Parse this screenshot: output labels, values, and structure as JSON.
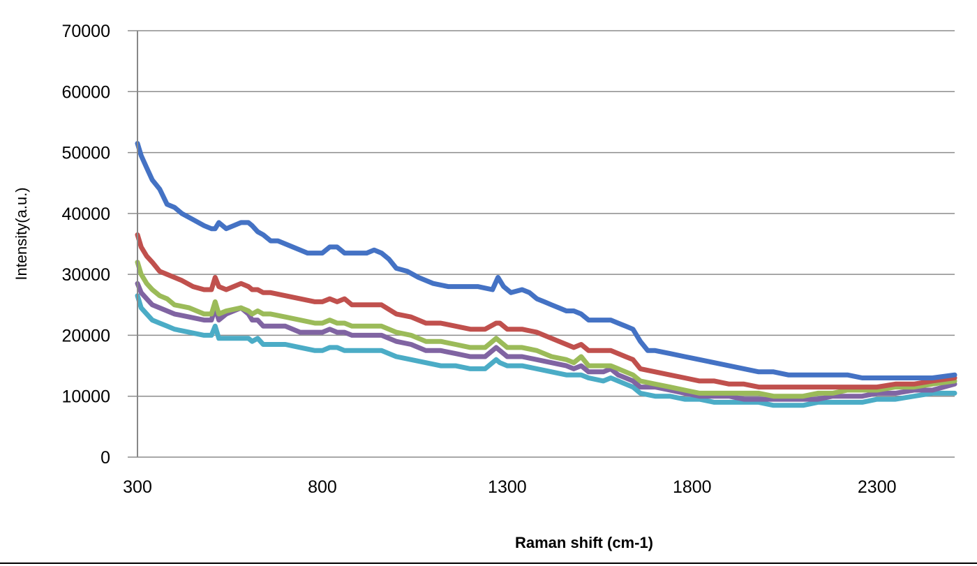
{
  "chart_data": {
    "type": "line",
    "title": "",
    "xlabel": "Raman shift (cm-1)",
    "ylabel": "Intensity(a.u.)",
    "xlim": [
      300,
      2510
    ],
    "ylim": [
      0,
      70000
    ],
    "xticks": [
      300,
      800,
      1300,
      1800,
      2300
    ],
    "yticks": [
      0,
      10000,
      20000,
      30000,
      40000,
      50000,
      60000,
      70000
    ],
    "grid": true,
    "legend": "none",
    "series": [
      {
        "color": "#4472C4",
        "x": [
          300,
          310,
          325,
          340,
          360,
          380,
          400,
          420,
          450,
          480,
          500,
          510,
          520,
          540,
          560,
          580,
          600,
          610,
          625,
          640,
          660,
          680,
          700,
          720,
          740,
          760,
          780,
          800,
          820,
          840,
          860,
          880,
          900,
          920,
          940,
          960,
          980,
          1000,
          1030,
          1060,
          1100,
          1140,
          1180,
          1220,
          1260,
          1275,
          1290,
          1310,
          1340,
          1360,
          1380,
          1400,
          1420,
          1440,
          1460,
          1480,
          1500,
          1520,
          1540,
          1560,
          1580,
          1600,
          1620,
          1640,
          1660,
          1680,
          1700,
          1740,
          1780,
          1820,
          1860,
          1900,
          1940,
          1980,
          2020,
          2060,
          2100,
          2140,
          2180,
          2220,
          2260,
          2300,
          2350,
          2400,
          2450,
          2510
        ],
        "y": [
          51500,
          49500,
          47500,
          45500,
          44000,
          41500,
          41000,
          40000,
          39000,
          38000,
          37500,
          37500,
          38500,
          37500,
          38000,
          38500,
          38500,
          38000,
          37000,
          36500,
          35500,
          35500,
          35000,
          34500,
          34000,
          33500,
          33500,
          33500,
          34500,
          34500,
          33500,
          33500,
          33500,
          33500,
          34000,
          33500,
          32500,
          31000,
          30500,
          29500,
          28500,
          28000,
          28000,
          28000,
          27500,
          29500,
          28000,
          27000,
          27500,
          27000,
          26000,
          25500,
          25000,
          24500,
          24000,
          24000,
          23500,
          22500,
          22500,
          22500,
          22500,
          22000,
          21500,
          21000,
          19000,
          17500,
          17500,
          17000,
          16500,
          16000,
          15500,
          15000,
          14500,
          14000,
          14000,
          13500,
          13500,
          13500,
          13500,
          13500,
          13000,
          13000,
          13000,
          13000,
          13000,
          13500
        ]
      },
      {
        "color": "#C0504D",
        "x": [
          300,
          310,
          325,
          340,
          360,
          380,
          400,
          420,
          450,
          480,
          500,
          510,
          520,
          540,
          560,
          580,
          600,
          610,
          625,
          640,
          660,
          700,
          740,
          780,
          800,
          820,
          840,
          860,
          880,
          920,
          960,
          1000,
          1040,
          1080,
          1120,
          1160,
          1200,
          1240,
          1270,
          1280,
          1300,
          1340,
          1380,
          1420,
          1460,
          1480,
          1500,
          1520,
          1560,
          1580,
          1600,
          1620,
          1640,
          1660,
          1700,
          1740,
          1780,
          1820,
          1860,
          1900,
          1940,
          1980,
          2020,
          2060,
          2100,
          2140,
          2180,
          2220,
          2260,
          2300,
          2350,
          2400,
          2450,
          2510
        ],
        "y": [
          36500,
          34500,
          33000,
          32000,
          30500,
          30000,
          29500,
          29000,
          28000,
          27500,
          27500,
          29500,
          28000,
          27500,
          28000,
          28500,
          28000,
          27500,
          27500,
          27000,
          27000,
          26500,
          26000,
          25500,
          25500,
          26000,
          25500,
          26000,
          25000,
          25000,
          25000,
          23500,
          23000,
          22000,
          22000,
          21500,
          21000,
          21000,
          22000,
          22000,
          21000,
          21000,
          20500,
          19500,
          18500,
          18000,
          18500,
          17500,
          17500,
          17500,
          17000,
          16500,
          16000,
          14500,
          14000,
          13500,
          13000,
          12500,
          12500,
          12000,
          12000,
          11500,
          11500,
          11500,
          11500,
          11500,
          11500,
          11500,
          11500,
          11500,
          12000,
          12000,
          12500,
          13000
        ]
      },
      {
        "color": "#9BBB59",
        "x": [
          300,
          310,
          325,
          340,
          360,
          380,
          400,
          440,
          480,
          500,
          510,
          520,
          540,
          580,
          600,
          610,
          625,
          640,
          660,
          700,
          740,
          780,
          800,
          820,
          840,
          860,
          880,
          920,
          960,
          1000,
          1040,
          1080,
          1120,
          1160,
          1200,
          1240,
          1270,
          1280,
          1300,
          1340,
          1380,
          1420,
          1460,
          1480,
          1500,
          1520,
          1560,
          1580,
          1600,
          1620,
          1640,
          1660,
          1700,
          1740,
          1780,
          1820,
          1860,
          1900,
          1940,
          1980,
          2020,
          2060,
          2100,
          2140,
          2180,
          2220,
          2260,
          2300,
          2350,
          2400,
          2450,
          2510
        ],
        "y": [
          32000,
          30000,
          28500,
          27500,
          26500,
          26000,
          25000,
          24500,
          23500,
          23500,
          25500,
          23500,
          24000,
          24500,
          24000,
          23500,
          24000,
          23500,
          23500,
          23000,
          22500,
          22000,
          22000,
          22500,
          22000,
          22000,
          21500,
          21500,
          21500,
          20500,
          20000,
          19000,
          19000,
          18500,
          18000,
          18000,
          19500,
          19000,
          18000,
          18000,
          17500,
          16500,
          16000,
          15500,
          16500,
          15000,
          15000,
          15000,
          14500,
          14000,
          13500,
          12500,
          12000,
          11500,
          11000,
          10500,
          10500,
          10500,
          10500,
          10500,
          10000,
          10000,
          10000,
          10500,
          10500,
          11000,
          11000,
          11000,
          11500,
          11500,
          12000,
          12500
        ]
      },
      {
        "color": "#8064A2",
        "x": [
          300,
          310,
          325,
          340,
          360,
          380,
          400,
          440,
          480,
          500,
          510,
          520,
          540,
          580,
          600,
          610,
          625,
          640,
          660,
          700,
          740,
          780,
          800,
          820,
          840,
          860,
          880,
          920,
          960,
          1000,
          1040,
          1080,
          1120,
          1160,
          1200,
          1240,
          1270,
          1280,
          1300,
          1340,
          1380,
          1420,
          1460,
          1480,
          1500,
          1520,
          1560,
          1580,
          1600,
          1620,
          1640,
          1660,
          1700,
          1740,
          1780,
          1820,
          1860,
          1900,
          1940,
          1980,
          2020,
          2060,
          2100,
          2140,
          2180,
          2220,
          2260,
          2300,
          2350,
          2400,
          2450,
          2510
        ],
        "y": [
          28500,
          27000,
          26000,
          25000,
          24500,
          24000,
          23500,
          23000,
          22500,
          22500,
          24500,
          22500,
          23500,
          24500,
          23500,
          22500,
          22500,
          21500,
          21500,
          21500,
          20500,
          20500,
          20500,
          21000,
          20500,
          20500,
          20000,
          20000,
          20000,
          19000,
          18500,
          17500,
          17500,
          17000,
          16500,
          16500,
          18000,
          17500,
          16500,
          16500,
          16000,
          15500,
          15000,
          14500,
          15000,
          14000,
          14000,
          14500,
          13500,
          13000,
          12500,
          11500,
          11500,
          11000,
          10500,
          10000,
          10000,
          10000,
          9500,
          9500,
          9500,
          9500,
          9500,
          9500,
          10000,
          10000,
          10000,
          10500,
          10500,
          11000,
          11000,
          12000
        ]
      },
      {
        "color": "#4BACC6",
        "x": [
          300,
          310,
          325,
          340,
          360,
          380,
          400,
          440,
          480,
          500,
          510,
          520,
          540,
          580,
          600,
          610,
          625,
          640,
          660,
          700,
          740,
          780,
          800,
          820,
          840,
          860,
          880,
          920,
          960,
          1000,
          1040,
          1080,
          1120,
          1160,
          1200,
          1240,
          1270,
          1280,
          1300,
          1340,
          1380,
          1420,
          1460,
          1480,
          1500,
          1520,
          1560,
          1580,
          1600,
          1620,
          1640,
          1660,
          1700,
          1740,
          1780,
          1820,
          1860,
          1900,
          1940,
          1980,
          2020,
          2060,
          2100,
          2140,
          2180,
          2220,
          2260,
          2300,
          2350,
          2400,
          2450,
          2510
        ],
        "y": [
          26500,
          24500,
          23500,
          22500,
          22000,
          21500,
          21000,
          20500,
          20000,
          20000,
          21500,
          19500,
          19500,
          19500,
          19500,
          19000,
          19500,
          18500,
          18500,
          18500,
          18000,
          17500,
          17500,
          18000,
          18000,
          17500,
          17500,
          17500,
          17500,
          16500,
          16000,
          15500,
          15000,
          15000,
          14500,
          14500,
          16000,
          15500,
          15000,
          15000,
          14500,
          14000,
          13500,
          13500,
          13500,
          13000,
          12500,
          13000,
          12500,
          12000,
          11500,
          10500,
          10000,
          10000,
          9500,
          9500,
          9000,
          9000,
          9000,
          9000,
          8500,
          8500,
          8500,
          9000,
          9000,
          9000,
          9000,
          9500,
          9500,
          10000,
          10500,
          10500
        ]
      }
    ]
  }
}
